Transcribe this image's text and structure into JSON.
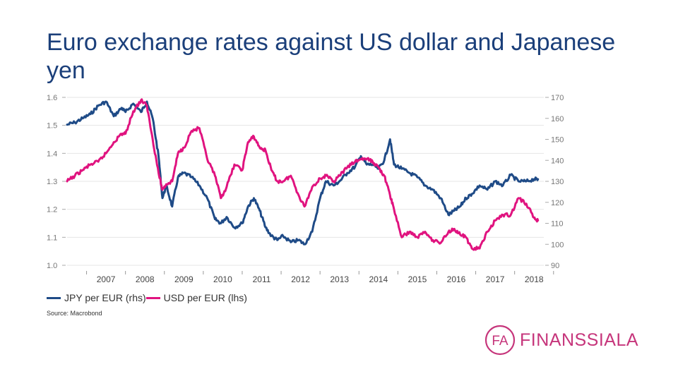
{
  "slide": {
    "title": "Euro exchange rates against US dollar and Japanese yen",
    "source": "Source: Macrobond",
    "logo_letters": "FA",
    "logo_text": "FINANSSIALA"
  },
  "colors": {
    "jpy": "#1f4b87",
    "usd": "#e0137f",
    "brand": "#c6357b",
    "title": "#1b3f7a"
  },
  "chart_data": {
    "type": "line",
    "x_range": [
      2006.5,
      2018.75
    ],
    "x_ticks": [
      "2007",
      "2008",
      "2009",
      "2010",
      "2011",
      "2012",
      "2013",
      "2014",
      "2015",
      "2016",
      "2017",
      "2018"
    ],
    "y_left": {
      "range": [
        1.0,
        1.6
      ],
      "ticks": [
        "1.0",
        "1.1",
        "1.2",
        "1.3",
        "1.4",
        "1.5",
        "1.6"
      ]
    },
    "y_right": {
      "range": [
        90,
        170
      ],
      "ticks": [
        "90",
        "100",
        "110",
        "120",
        "130",
        "140",
        "150",
        "160",
        "170"
      ]
    },
    "grid": true,
    "legend": "bottom-left",
    "series": [
      {
        "name": "JPY per EUR (rhs)",
        "axis": "right",
        "x": [
          2006.5,
          2006.7,
          2006.9,
          2007.1,
          2007.3,
          2007.5,
          2007.7,
          2007.9,
          2008.0,
          2008.2,
          2008.4,
          2008.55,
          2008.7,
          2008.85,
          2008.95,
          2009.05,
          2009.2,
          2009.35,
          2009.5,
          2009.7,
          2009.9,
          2010.1,
          2010.3,
          2010.45,
          2010.6,
          2010.8,
          2011.0,
          2011.15,
          2011.3,
          2011.45,
          2011.6,
          2011.75,
          2011.9,
          2012.05,
          2012.25,
          2012.45,
          2012.6,
          2012.8,
          2013.0,
          2013.15,
          2013.35,
          2013.5,
          2013.7,
          2013.9,
          2014.05,
          2014.2,
          2014.35,
          2014.5,
          2014.65,
          2014.8,
          2014.9,
          2015.1,
          2015.3,
          2015.5,
          2015.7,
          2015.9,
          2016.1,
          2016.3,
          2016.45,
          2016.6,
          2016.75,
          2016.9,
          2017.1,
          2017.3,
          2017.5,
          2017.7,
          2017.9,
          2018.1,
          2018.3,
          2018.5,
          2018.6
        ],
        "values": [
          157,
          158,
          160,
          162,
          166,
          168,
          161,
          165,
          163,
          167,
          163,
          168,
          160,
          142,
          122,
          128,
          118,
          132,
          134,
          132,
          128,
          122,
          112,
          110,
          113,
          108,
          110,
          118,
          122,
          116,
          108,
          104,
          102,
          104,
          101,
          102,
          100,
          106,
          122,
          130,
          128,
          130,
          134,
          137,
          142,
          138,
          138,
          136,
          140,
          150,
          138,
          136,
          134,
          132,
          128,
          126,
          122,
          114,
          116,
          118,
          122,
          124,
          128,
          126,
          130,
          128,
          133,
          130,
          130,
          131,
          131
        ]
      },
      {
        "name": "USD per EUR (lhs)",
        "axis": "left",
        "x": [
          2006.5,
          2006.7,
          2006.9,
          2007.1,
          2007.3,
          2007.5,
          2007.7,
          2007.9,
          2008.0,
          2008.2,
          2008.4,
          2008.55,
          2008.7,
          2008.85,
          2008.95,
          2009.05,
          2009.2,
          2009.35,
          2009.5,
          2009.7,
          2009.9,
          2010.1,
          2010.3,
          2010.45,
          2010.6,
          2010.8,
          2011.0,
          2011.15,
          2011.3,
          2011.45,
          2011.6,
          2011.75,
          2011.9,
          2012.05,
          2012.25,
          2012.45,
          2012.6,
          2012.8,
          2013.0,
          2013.15,
          2013.35,
          2013.5,
          2013.7,
          2013.9,
          2014.05,
          2014.2,
          2014.35,
          2014.5,
          2014.65,
          2014.8,
          2014.9,
          2015.1,
          2015.3,
          2015.5,
          2015.7,
          2015.9,
          2016.1,
          2016.3,
          2016.45,
          2016.6,
          2016.75,
          2016.9,
          2017.1,
          2017.3,
          2017.5,
          2017.7,
          2017.9,
          2018.1,
          2018.3,
          2018.5,
          2018.6
        ],
        "values": [
          1.3,
          1.32,
          1.34,
          1.36,
          1.37,
          1.4,
          1.44,
          1.47,
          1.47,
          1.55,
          1.59,
          1.57,
          1.45,
          1.33,
          1.27,
          1.29,
          1.3,
          1.4,
          1.42,
          1.48,
          1.49,
          1.38,
          1.32,
          1.24,
          1.28,
          1.36,
          1.34,
          1.44,
          1.46,
          1.42,
          1.41,
          1.34,
          1.3,
          1.3,
          1.32,
          1.25,
          1.21,
          1.28,
          1.31,
          1.32,
          1.3,
          1.32,
          1.35,
          1.37,
          1.38,
          1.38,
          1.37,
          1.35,
          1.32,
          1.25,
          1.2,
          1.1,
          1.12,
          1.1,
          1.12,
          1.09,
          1.08,
          1.12,
          1.13,
          1.11,
          1.1,
          1.06,
          1.06,
          1.12,
          1.16,
          1.18,
          1.18,
          1.24,
          1.22,
          1.17,
          1.16
        ]
      }
    ]
  }
}
